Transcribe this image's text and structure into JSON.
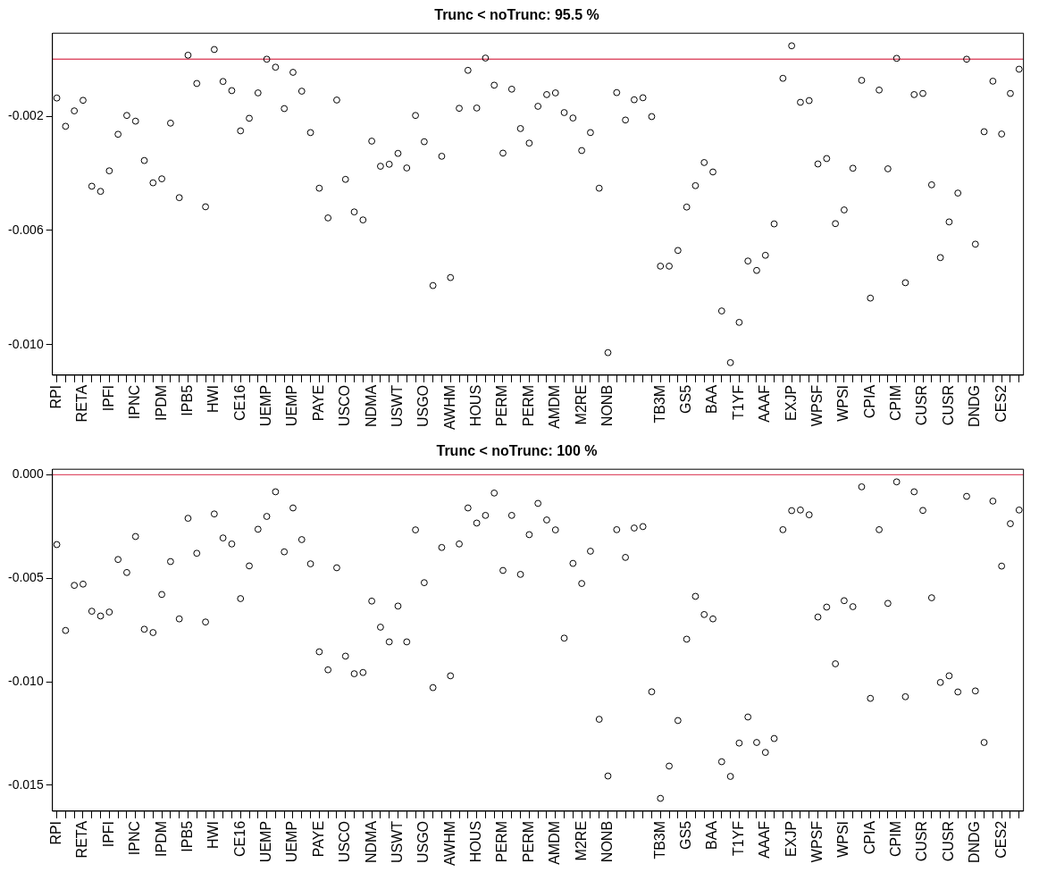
{
  "chart_data": [
    {
      "type": "scatter",
      "title": "Trunc < noTrunc: 95.5 %",
      "color": "#000000",
      "marker": "circle",
      "categories": [
        "RPI",
        null,
        null,
        "RETA",
        null,
        null,
        "IPFI",
        null,
        null,
        "IPNC",
        null,
        null,
        "IPDM",
        null,
        null,
        "IPB5",
        null,
        null,
        "HWI",
        null,
        null,
        "CE16",
        null,
        null,
        "UEMP",
        null,
        null,
        "UEMP",
        null,
        null,
        "PAYE",
        null,
        null,
        "USCO",
        null,
        null,
        "NDMA",
        null,
        null,
        "USWT",
        null,
        null,
        "USGO",
        null,
        null,
        "AWHM",
        null,
        null,
        "HOUS",
        null,
        null,
        "PERM",
        null,
        null,
        "PERM",
        null,
        null,
        "AMDM",
        null,
        null,
        "M2RE",
        null,
        null,
        "NONB",
        null,
        null,
        null,
        null,
        null,
        "TB3M",
        null,
        null,
        "GS5",
        null,
        null,
        "BAA",
        null,
        null,
        "T1YF",
        null,
        null,
        "AAAF",
        null,
        null,
        "EXJP",
        null,
        null,
        "WPSF",
        null,
        null,
        "WPSI",
        null,
        null,
        "CPIA",
        null,
        null,
        "CPIM",
        null,
        null,
        "CUSR",
        null,
        null,
        "CUSR",
        null,
        null,
        "DNDG",
        null,
        null,
        "CES2",
        null,
        null
      ],
      "values": [
        -0.00136,
        -0.00235,
        -0.00181,
        -0.00144,
        -0.00445,
        -0.00463,
        -0.00391,
        -0.00263,
        -0.00197,
        -0.00217,
        -0.00355,
        -0.00433,
        -0.00419,
        -0.00224,
        -0.00485,
        0.00014,
        -0.00085,
        -0.00517,
        0.00034,
        -0.00078,
        -0.0011,
        -0.00251,
        -0.00207,
        -0.00118,
        0.0,
        -0.00028,
        -0.00173,
        -0.00046,
        -0.00112,
        -0.00257,
        -0.00452,
        -0.00556,
        -0.00143,
        -0.00421,
        -0.00535,
        -0.00563,
        -0.00287,
        -0.00375,
        -0.00368,
        -0.0033,
        -0.00381,
        -0.00197,
        -0.00289,
        -0.00793,
        -0.0034,
        -0.00765,
        -0.00172,
        -0.00039,
        -0.00171,
        4e-05,
        -0.00091,
        -0.00329,
        -0.00105,
        -0.00243,
        -0.00294,
        -0.00165,
        -0.00124,
        -0.00118,
        -0.00187,
        -0.00206,
        -0.0032,
        -0.00257,
        -0.00452,
        -0.01028,
        -0.00117,
        -0.00213,
        -0.00142,
        -0.00135,
        -0.00201,
        -0.00725,
        -0.00725,
        -0.0067,
        -0.00518,
        -0.00443,
        -0.00362,
        -0.00395,
        -0.00882,
        -0.01063,
        -0.00922,
        -0.00707,
        -0.0074,
        -0.00687,
        -0.00577,
        -0.00067,
        0.00047,
        -0.00151,
        -0.00145,
        -0.00367,
        -0.00348,
        -0.00576,
        -0.00528,
        -0.00382,
        -0.00074,
        -0.00837,
        -0.00108,
        -0.00384,
        3e-05,
        -0.00783,
        -0.00124,
        -0.0012,
        -0.0044,
        -0.00695,
        -0.0057,
        -0.00469,
        0.0,
        -0.00648,
        -0.00254,
        -0.00077,
        -0.00262,
        -0.0012,
        -0.00035
      ],
      "ylim": [
        -0.01107,
        0.00091
      ],
      "yticks": [
        {
          "value": -0.01,
          "label": "-0.010"
        },
        {
          "value": -0.006,
          "label": "-0.006"
        },
        {
          "value": -0.002,
          "label": "-0.002"
        }
      ],
      "ref_lines": [
        {
          "axis": "y",
          "value": 0,
          "color": "#df536b"
        }
      ]
    },
    {
      "type": "scatter",
      "title": "Trunc < noTrunc: 100 %",
      "color": "#000000",
      "marker": "circle",
      "categories": [
        "RPI",
        null,
        null,
        "RETA",
        null,
        null,
        "IPFI",
        null,
        null,
        "IPNC",
        null,
        null,
        "IPDM",
        null,
        null,
        "IPB5",
        null,
        null,
        "HWI",
        null,
        null,
        "CE16",
        null,
        null,
        "UEMP",
        null,
        null,
        "UEMP",
        null,
        null,
        "PAYE",
        null,
        null,
        "USCO",
        null,
        null,
        "NDMA",
        null,
        null,
        "USWT",
        null,
        null,
        "USGO",
        null,
        null,
        "AWHM",
        null,
        null,
        "HOUS",
        null,
        null,
        "PERM",
        null,
        null,
        "PERM",
        null,
        null,
        "AMDM",
        null,
        null,
        "M2RE",
        null,
        null,
        "NONB",
        null,
        null,
        null,
        null,
        null,
        "TB3M",
        null,
        null,
        "GS5",
        null,
        null,
        "BAA",
        null,
        null,
        "T1YF",
        null,
        null,
        "AAAF",
        null,
        null,
        "EXJP",
        null,
        null,
        "WPSF",
        null,
        null,
        "WPSI",
        null,
        null,
        "CPIA",
        null,
        null,
        "CPIM",
        null,
        null,
        "CUSR",
        null,
        null,
        "CUSR",
        null,
        null,
        "DNDG",
        null,
        null,
        "CES2",
        null,
        null
      ],
      "values": [
        -0.00337,
        -0.00752,
        -0.00534,
        -0.00528,
        -0.00659,
        -0.00682,
        -0.00663,
        -0.00409,
        -0.00472,
        -0.00298,
        -0.00746,
        -0.00762,
        -0.00578,
        -0.00419,
        -0.00696,
        -0.0021,
        -0.00379,
        -0.00711,
        -0.00189,
        -0.00305,
        -0.00334,
        -0.00598,
        -0.0044,
        -0.00263,
        -0.00201,
        -0.00082,
        -0.00372,
        -0.0016,
        -0.00313,
        -0.0043,
        -0.00855,
        -0.00942,
        -0.00449,
        -0.00876,
        -0.00961,
        -0.00955,
        -0.0061,
        -0.00736,
        -0.00807,
        -0.00634,
        -0.00807,
        -0.00266,
        -0.00521,
        -0.01028,
        -0.00351,
        -0.00971,
        -0.00334,
        -0.0016,
        -0.00233,
        -0.00196,
        -0.00088,
        -0.00462,
        -0.00196,
        -0.00481,
        -0.00289,
        -0.00138,
        -0.00218,
        -0.00266,
        -0.00789,
        -0.00428,
        -0.00525,
        -0.00369,
        -0.01181,
        -0.01455,
        -0.00265,
        -0.00399,
        -0.00257,
        -0.0025,
        -0.01048,
        -0.01563,
        -0.01407,
        -0.01187,
        -0.00794,
        -0.00587,
        -0.00675,
        -0.00696,
        -0.01386,
        -0.01457,
        -0.01296,
        -0.0117,
        -0.01293,
        -0.01341,
        -0.01274,
        -0.00265,
        -0.00173,
        -0.0017,
        -0.00193,
        -0.00687,
        -0.00639,
        -0.00913,
        -0.00608,
        -0.00637,
        -0.00058,
        -0.0108,
        -0.00265,
        -0.00621,
        -0.00034,
        -0.01072,
        -0.00082,
        -0.00172,
        -0.00594,
        -0.01003,
        -0.00971,
        -0.01049,
        -0.00104,
        -0.01044,
        -0.01293,
        -0.00127,
        -0.00441,
        -0.00236,
        -0.0017
      ],
      "ylim": [
        -0.01625,
        0.00027
      ],
      "yticks": [
        {
          "value": -0.015,
          "label": "-0.015"
        },
        {
          "value": -0.01,
          "label": "-0.010"
        },
        {
          "value": -0.005,
          "label": "-0.005"
        },
        {
          "value": 0,
          "label": "0.000"
        }
      ],
      "ref_lines": [
        {
          "axis": "y",
          "value": 0,
          "color": "#df536b"
        }
      ]
    }
  ]
}
